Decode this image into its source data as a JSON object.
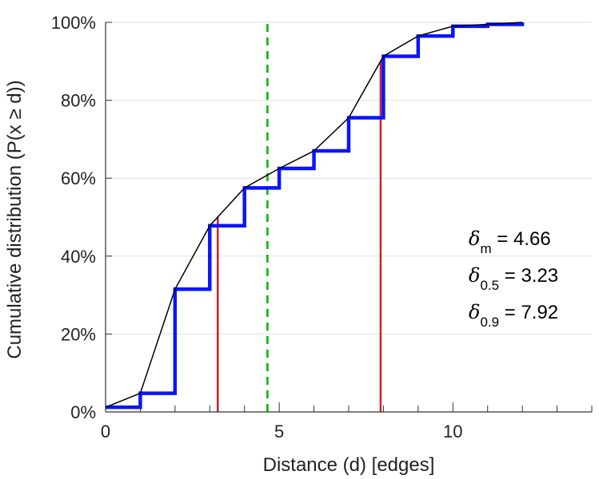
{
  "chart_data": {
    "type": "line",
    "xlabel": "Distance (d) [edges]",
    "ylabel": "Cumulative distribution (P(x ≥ d))",
    "xlim": [
      0,
      14
    ],
    "ylim": [
      0,
      100
    ],
    "xticks": [
      0,
      5,
      10
    ],
    "xtick_labels": [
      "0",
      "5",
      "10"
    ],
    "yticks": [
      0,
      20,
      40,
      60,
      80,
      100
    ],
    "ytick_labels": [
      "0%",
      "20%",
      "40%",
      "60%",
      "80%",
      "100%"
    ],
    "grid": "horizontal",
    "series": [
      {
        "style": "step",
        "color": "#0a14ff",
        "x": [
          0,
          1,
          2,
          3,
          4,
          5,
          6,
          7,
          8,
          9,
          10,
          11,
          12
        ],
        "y": [
          1.2,
          4.8,
          31.5,
          47.8,
          57.5,
          62.5,
          67.0,
          75.5,
          91.3,
          96.5,
          99.0,
          99.5,
          100.0
        ]
      },
      {
        "style": "line",
        "color": "#000000",
        "x": [
          0,
          1,
          2,
          3,
          4,
          5,
          6,
          7,
          8,
          9,
          10,
          11,
          12
        ],
        "y": [
          1.2,
          4.8,
          31.5,
          47.8,
          57.5,
          62.5,
          67.0,
          75.5,
          91.3,
          96.5,
          99.0,
          99.5,
          100.0
        ]
      }
    ],
    "vlines": [
      {
        "x": 3.23,
        "y_top": 50.0,
        "color": "#cc2222",
        "style": "solid"
      },
      {
        "x": 7.92,
        "y_top": 90.0,
        "color": "#cc2222",
        "style": "solid"
      },
      {
        "x": 4.66,
        "y_top": 100.0,
        "color": "#22bb22",
        "style": "dashed"
      }
    ],
    "annotations": [
      {
        "symbol": "δ",
        "sub": "m",
        "text": "= 4.66"
      },
      {
        "symbol": "δ",
        "sub": "0.5",
        "text": "= 3.23"
      },
      {
        "symbol": "δ",
        "sub": "0.9",
        "text": "= 7.92"
      }
    ]
  }
}
